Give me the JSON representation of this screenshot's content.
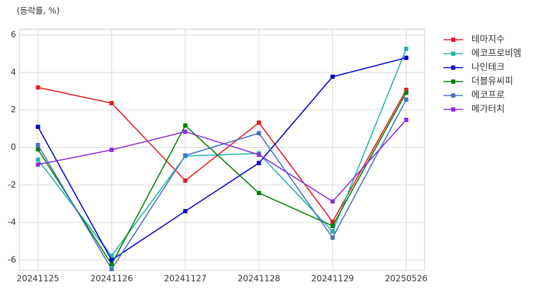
{
  "chart_data": {
    "type": "line",
    "y_label": "(등락률, %)",
    "categories": [
      "20241125",
      "20241126",
      "20241127",
      "20241128",
      "20241129",
      "20250526"
    ],
    "ylim": [
      -6.56,
      6.3
    ],
    "yticks": [
      -6,
      -4,
      -2,
      0,
      2,
      4,
      6
    ],
    "grid": true,
    "legend": "outside right",
    "series": [
      {
        "name": "테마지수",
        "color": "#e31a1c",
        "values": [
          3.2,
          2.36,
          -1.77,
          1.32,
          -3.96,
          3.07
        ]
      },
      {
        "name": "에코프로비엠",
        "color": "#20b2aa",
        "values": [
          -0.65,
          -5.78,
          -0.46,
          -0.32,
          -4.48,
          5.26
        ]
      },
      {
        "name": "나인테크",
        "color": "#0000cd",
        "values": [
          1.1,
          -6.0,
          -3.4,
          -0.83,
          3.77,
          4.78
        ]
      },
      {
        "name": "더블유씨피",
        "color": "#008000",
        "values": [
          -0.1,
          -6.23,
          1.17,
          -2.43,
          -4.18,
          2.92
        ]
      },
      {
        "name": "에코프로",
        "color": "#4472c4",
        "values": [
          0.13,
          -6.49,
          -0.43,
          0.76,
          -4.81,
          2.55
        ]
      },
      {
        "name": "메가터치",
        "color": "#8a2be2",
        "values": [
          -0.91,
          -0.13,
          0.84,
          -0.39,
          -2.88,
          1.47
        ]
      }
    ]
  }
}
